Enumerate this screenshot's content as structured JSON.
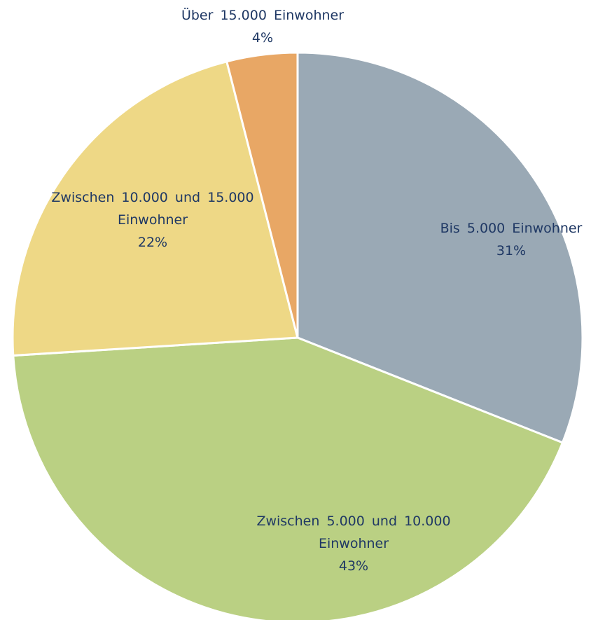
{
  "chart_data": {
    "type": "pie",
    "categories": [
      "Bis 5.000 Einwohner",
      "Zwischen 5.000 und 10.000 Einwohner",
      "Zwischen 10.000 und 15.000 Einwohner",
      "Über 15.000 Einwohner"
    ],
    "values": [
      31,
      43,
      22,
      4
    ],
    "value_labels": [
      "31%",
      "43%",
      "22%",
      "4%"
    ],
    "colors": [
      "#9aa9b5",
      "#bad083",
      "#eed886",
      "#e8a765"
    ]
  }
}
